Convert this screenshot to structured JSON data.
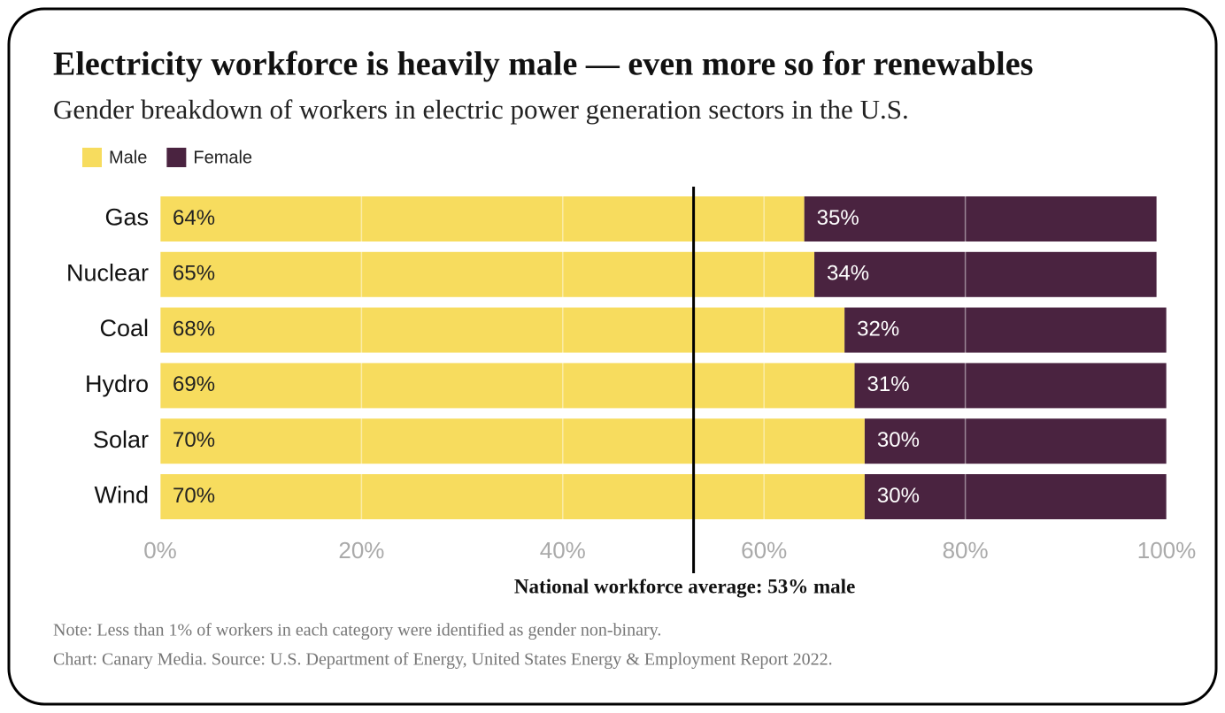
{
  "chart_data": {
    "type": "stacked-barh",
    "title": "Electricity workforce is heavily male — even more so for renewables",
    "subtitle": "Gender breakdown of workers in electric power generation sectors in the U.S.",
    "categories": [
      "Gas",
      "Nuclear",
      "Coal",
      "Hydro",
      "Solar",
      "Wind"
    ],
    "series": [
      {
        "name": "Male",
        "color": "#f7dc5e",
        "values": [
          64,
          65,
          68,
          69,
          70,
          70
        ],
        "value_labels": [
          "64%",
          "65%",
          "68%",
          "69%",
          "70%",
          "70%"
        ]
      },
      {
        "name": "Female",
        "color": "#4a2340",
        "values": [
          35,
          34,
          32,
          31,
          30,
          30
        ],
        "value_labels": [
          "35%",
          "34%",
          "32%",
          "31%",
          "30%",
          "30%"
        ]
      }
    ],
    "xlim": [
      0,
      100
    ],
    "xticks": [
      {
        "value": 0,
        "label": "0%"
      },
      {
        "value": 20,
        "label": "20%"
      },
      {
        "value": 40,
        "label": "40%"
      },
      {
        "value": 60,
        "label": "60%"
      },
      {
        "value": 80,
        "label": "80%"
      },
      {
        "value": 100,
        "label": "100%"
      }
    ],
    "grid": true,
    "reference_line": {
      "value": 53,
      "label": "National workforce average: 53% male"
    },
    "notes": [
      "Note: Less than 1% of workers in each category were identified as gender non-binary.",
      "Chart: Canary Media. Source: U.S. Department of Energy, United States Energy & Employment Report 2022."
    ]
  }
}
